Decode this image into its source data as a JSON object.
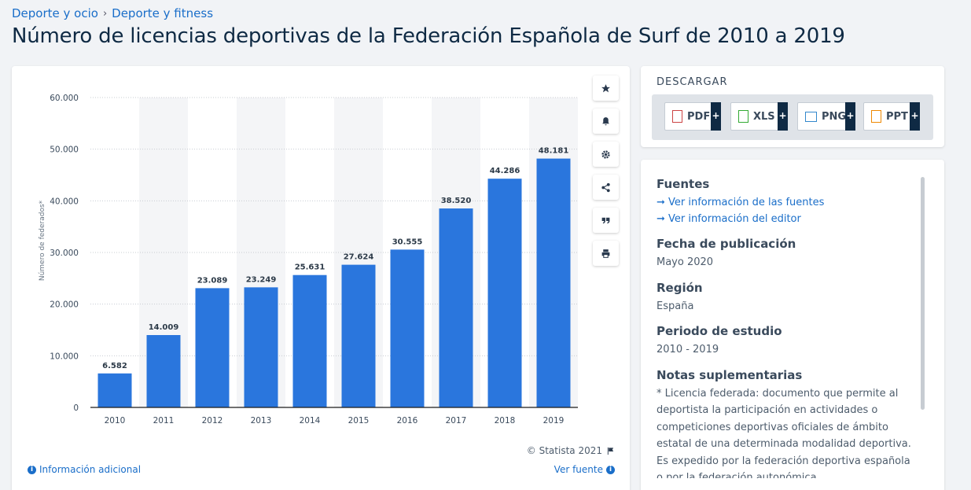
{
  "breadcrumb": {
    "item1": "Deporte y ocio",
    "separator": "›",
    "item2": "Deporte y fitness"
  },
  "title": "Número de licencias deportivas de la Federación Española de Surf de 2010 a 2019",
  "toolbar": {
    "icons": [
      "star-icon",
      "bell-icon",
      "gear-icon",
      "share-icon",
      "quote-icon",
      "print-icon"
    ]
  },
  "chart_data": {
    "type": "bar",
    "categories": [
      "2010",
      "2011",
      "2012",
      "2013",
      "2014",
      "2015",
      "2016",
      "2017",
      "2018",
      "2019"
    ],
    "values": [
      6582,
      14009,
      23089,
      23249,
      25631,
      27624,
      30555,
      38520,
      44286,
      48181
    ],
    "value_labels": [
      "6.582",
      "14.009",
      "23.089",
      "23.249",
      "25.631",
      "27.624",
      "30.555",
      "38.520",
      "44.286",
      "48.181"
    ],
    "ylabel": "Número de federados*",
    "xlabel": "",
    "ylim": [
      0,
      60000
    ],
    "yticks": [
      0,
      10000,
      20000,
      30000,
      40000,
      50000,
      60000
    ],
    "ytick_labels": [
      "0",
      "10.000",
      "20.000",
      "30.000",
      "40.000",
      "50.000",
      "60.000"
    ],
    "bar_color": "#2a76dd",
    "grid": true,
    "legend": "none"
  },
  "footer": {
    "copyright": "© Statista 2021",
    "info_link": "Información adicional",
    "source_link": "Ver fuente"
  },
  "download": {
    "title": "DESCARGAR",
    "buttons": [
      {
        "label": "PDF",
        "plus": "+"
      },
      {
        "label": "XLS",
        "plus": "+"
      },
      {
        "label": "PNG",
        "plus": "+"
      },
      {
        "label": "PPT",
        "plus": "+"
      }
    ]
  },
  "meta": {
    "sources_heading": "Fuentes",
    "sources_link1": "➞ Ver información de las fuentes",
    "sources_link2": "➞ Ver información del editor",
    "pub_date_heading": "Fecha de publicación",
    "pub_date": "Mayo 2020",
    "region_heading": "Región",
    "region": "España",
    "period_heading": "Periodo de estudio",
    "period": "2010 - 2019",
    "notes_heading": "Notas suplementarias",
    "notes": "* Licencia federada: documento que permite al deportista la participación en actividades o competiciones deportivas oficiales de ámbito estatal de una determinada modalidad deportiva. Es expedido por la federación deportiva española o por la federación autonómica."
  }
}
